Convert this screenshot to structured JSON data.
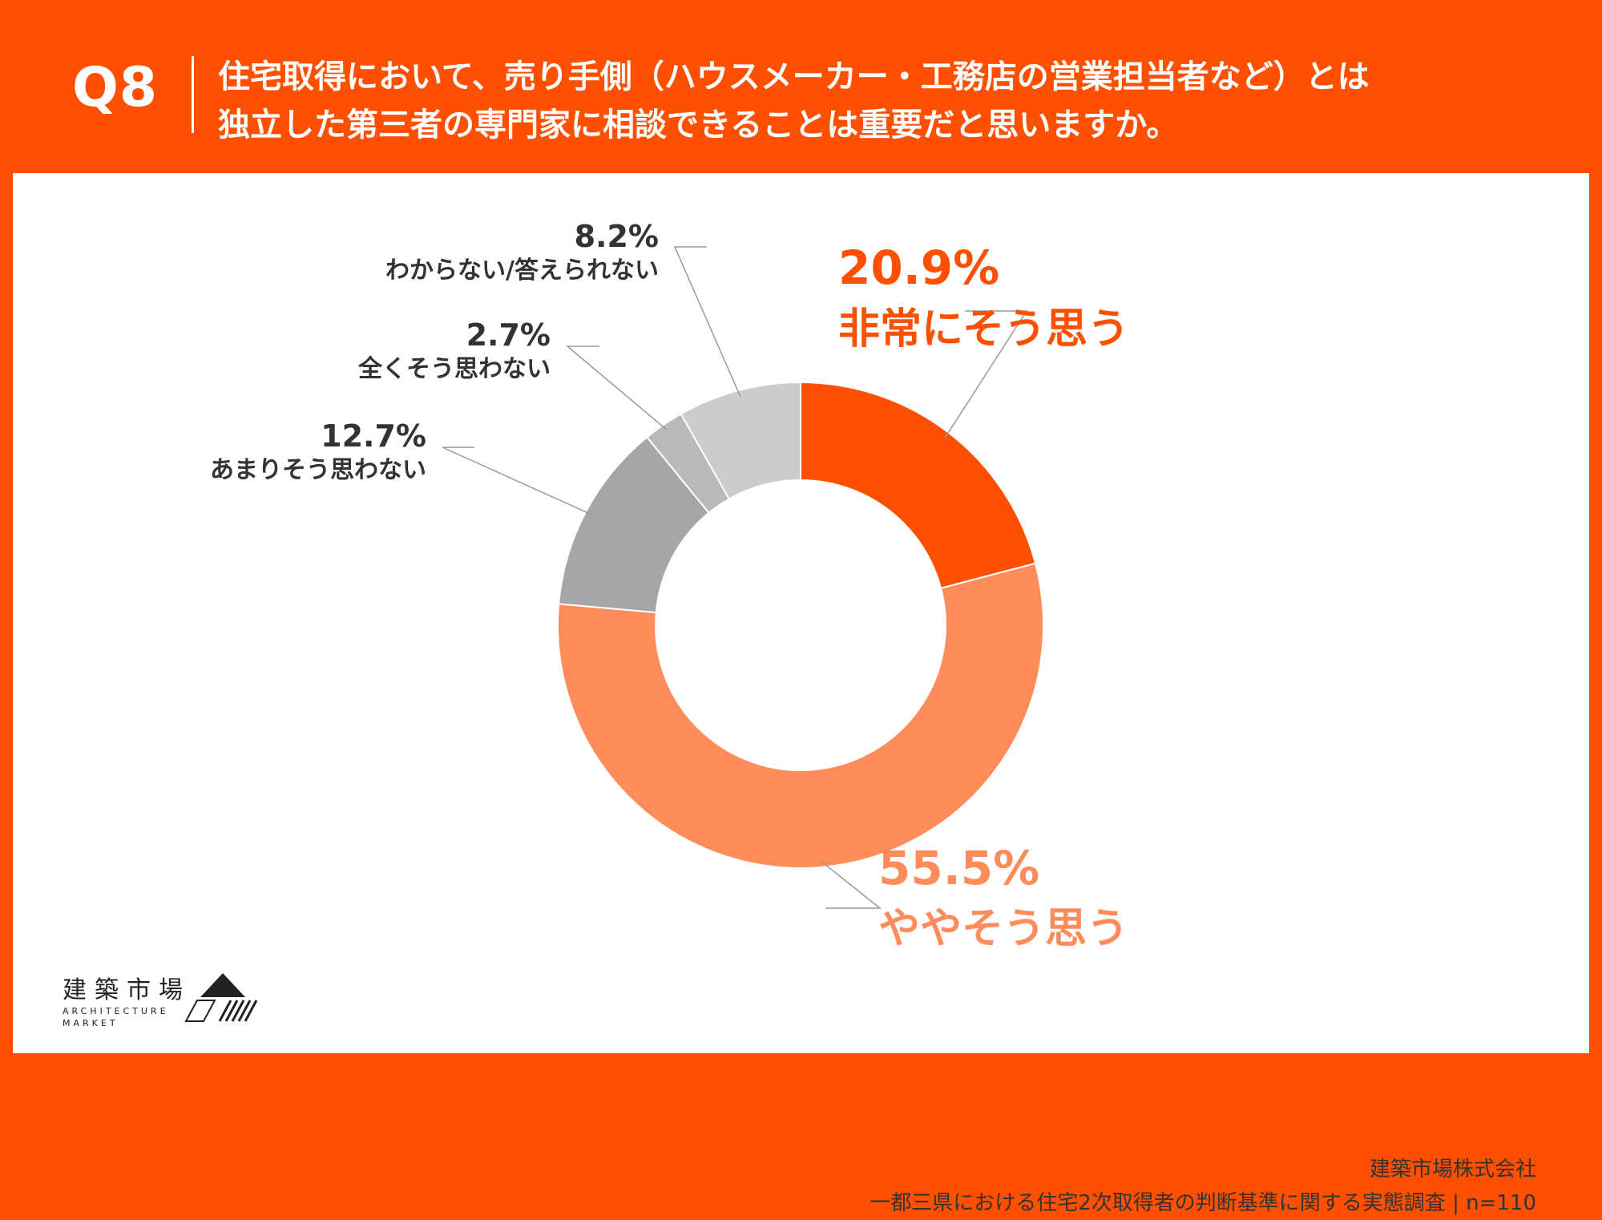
{
  "header": {
    "question_number": "Q8",
    "question_lines": [
      "住宅取得において、売り手側（ハウスメーカー・工務店の営業担当者など）とは",
      "独立した第三者の専門家に相談できることは重要だと思いますか。"
    ]
  },
  "chart_data": {
    "type": "pie",
    "donut": true,
    "slices": [
      {
        "label": "非常にそう思う",
        "value": 20.9,
        "value_label": "20.9%",
        "color": "#ff4f00"
      },
      {
        "label": "ややそう思う",
        "value": 55.5,
        "value_label": "55.5%",
        "color": "#ff8c5a"
      },
      {
        "label": "あまりそう思わない",
        "value": 12.7,
        "value_label": "12.7%",
        "color": "#a6a6a6"
      },
      {
        "label": "全くそう思わない",
        "value": 2.7,
        "value_label": "2.7%",
        "color": "#b9b9b9"
      },
      {
        "label": "わからない/答えられない",
        "value": 8.2,
        "value_label": "8.2%",
        "color": "#cccccc"
      }
    ]
  },
  "logo": {
    "text_jp": "建築市場",
    "text_en_1": "ARCHITECTURE",
    "text_en_2": "MARKET"
  },
  "footer": {
    "company": "建築市場株式会社",
    "survey": "一都三県における住宅2次取得者の判断基準に関する実態調査 | n=110"
  }
}
